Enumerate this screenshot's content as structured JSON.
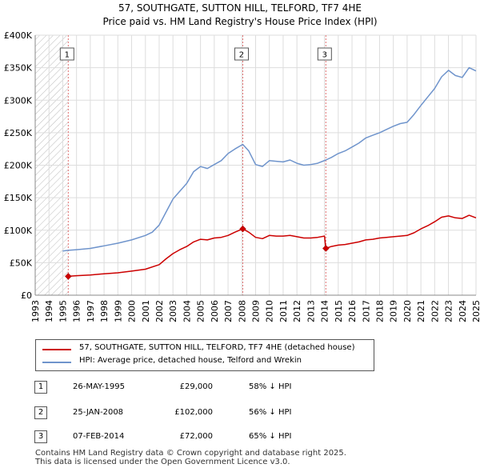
{
  "header": {
    "title": "57, SOUTHGATE, SUTTON HILL, TELFORD, TF7 4HE",
    "subtitle": "Price paid vs. HM Land Registry's House Price Index (HPI)"
  },
  "chart_data": {
    "type": "line",
    "x_axis": {
      "min": 1993,
      "max": 2025,
      "ticks": [
        1993,
        1994,
        1995,
        1996,
        1997,
        1998,
        1999,
        2000,
        2001,
        2002,
        2003,
        2004,
        2005,
        2006,
        2007,
        2008,
        2009,
        2010,
        2011,
        2012,
        2013,
        2014,
        2015,
        2016,
        2017,
        2018,
        2019,
        2020,
        2021,
        2022,
        2023,
        2024,
        2025
      ]
    },
    "y_axis": {
      "min": 0,
      "max": 400000,
      "ticks": [
        {
          "value": 0,
          "label": "£0"
        },
        {
          "value": 50000,
          "label": "£50K"
        },
        {
          "value": 100000,
          "label": "£100K"
        },
        {
          "value": 150000,
          "label": "£150K"
        },
        {
          "value": 200000,
          "label": "£200K"
        },
        {
          "value": 250000,
          "label": "£250K"
        },
        {
          "value": 300000,
          "label": "£300K"
        },
        {
          "value": 350000,
          "label": "£350K"
        },
        {
          "value": 400000,
          "label": "£400K"
        }
      ]
    },
    "grid": true,
    "hatched_before": 1995.4,
    "series": [
      {
        "name": "57, SOUTHGATE, SUTTON HILL, TELFORD, TF7 4HE (detached house)",
        "color": "#cc0000",
        "points": [
          [
            1995.4,
            29000
          ],
          [
            1996.0,
            30000
          ],
          [
            1997.0,
            31000
          ],
          [
            1998.0,
            33000
          ],
          [
            1999.0,
            34500
          ],
          [
            2000.0,
            37000
          ],
          [
            2001.0,
            40000
          ],
          [
            2002.0,
            47000
          ],
          [
            2002.5,
            56000
          ],
          [
            2003.0,
            64000
          ],
          [
            2003.5,
            70000
          ],
          [
            2004.0,
            75000
          ],
          [
            2004.5,
            82000
          ],
          [
            2005.0,
            86000
          ],
          [
            2005.5,
            85000
          ],
          [
            2006.0,
            88000
          ],
          [
            2006.5,
            89000
          ],
          [
            2007.0,
            92000
          ],
          [
            2007.5,
            97000
          ],
          [
            2008.07,
            102000
          ],
          [
            2008.5,
            97000
          ],
          [
            2009.0,
            89000
          ],
          [
            2009.5,
            87000
          ],
          [
            2010.0,
            92000
          ],
          [
            2010.5,
            91000
          ],
          [
            2011.0,
            91000
          ],
          [
            2011.5,
            92000
          ],
          [
            2012.0,
            90000
          ],
          [
            2012.5,
            88000
          ],
          [
            2013.0,
            88000
          ],
          [
            2013.5,
            89000
          ],
          [
            2014.0,
            91000
          ],
          [
            2014.1,
            72000
          ],
          [
            2014.5,
            75000
          ],
          [
            2015.0,
            77000
          ],
          [
            2015.5,
            78000
          ],
          [
            2016.0,
            80000
          ],
          [
            2016.5,
            82000
          ],
          [
            2017.0,
            85000
          ],
          [
            2017.5,
            86000
          ],
          [
            2018.0,
            88000
          ],
          [
            2018.5,
            89000
          ],
          [
            2019.0,
            90000
          ],
          [
            2019.5,
            91000
          ],
          [
            2020.0,
            92000
          ],
          [
            2020.5,
            96000
          ],
          [
            2021.0,
            102000
          ],
          [
            2021.5,
            107000
          ],
          [
            2022.0,
            113000
          ],
          [
            2022.5,
            120000
          ],
          [
            2023.0,
            122000
          ],
          [
            2023.5,
            119000
          ],
          [
            2024.0,
            118000
          ],
          [
            2024.5,
            123000
          ],
          [
            2025.0,
            119000
          ]
        ]
      },
      {
        "name": "HPI: Average price, detached house, Telford and Wrekin",
        "color": "#6f94cc",
        "points": [
          [
            1995.0,
            68000
          ],
          [
            1995.4,
            69000
          ],
          [
            1996.0,
            70000
          ],
          [
            1997.0,
            72000
          ],
          [
            1998.0,
            76000
          ],
          [
            1999.0,
            80000
          ],
          [
            2000.0,
            85000
          ],
          [
            2001.0,
            92000
          ],
          [
            2001.5,
            97000
          ],
          [
            2002.0,
            108000
          ],
          [
            2002.5,
            128000
          ],
          [
            2003.0,
            148000
          ],
          [
            2003.5,
            160000
          ],
          [
            2004.0,
            172000
          ],
          [
            2004.5,
            190000
          ],
          [
            2005.0,
            198000
          ],
          [
            2005.5,
            195000
          ],
          [
            2006.0,
            201000
          ],
          [
            2006.5,
            207000
          ],
          [
            2007.0,
            218000
          ],
          [
            2007.5,
            225000
          ],
          [
            2008.07,
            232000
          ],
          [
            2008.5,
            222000
          ],
          [
            2009.0,
            201000
          ],
          [
            2009.5,
            198000
          ],
          [
            2010.0,
            207000
          ],
          [
            2010.5,
            206000
          ],
          [
            2011.0,
            205000
          ],
          [
            2011.5,
            208000
          ],
          [
            2012.0,
            203000
          ],
          [
            2012.5,
            200000
          ],
          [
            2013.0,
            201000
          ],
          [
            2013.5,
            203000
          ],
          [
            2014.1,
            208000
          ],
          [
            2014.5,
            212000
          ],
          [
            2015.0,
            218000
          ],
          [
            2015.5,
            222000
          ],
          [
            2016.0,
            228000
          ],
          [
            2016.5,
            234000
          ],
          [
            2017.0,
            242000
          ],
          [
            2017.5,
            246000
          ],
          [
            2018.0,
            250000
          ],
          [
            2018.5,
            255000
          ],
          [
            2019.0,
            260000
          ],
          [
            2019.5,
            264000
          ],
          [
            2020.0,
            266000
          ],
          [
            2020.5,
            278000
          ],
          [
            2021.0,
            292000
          ],
          [
            2021.5,
            305000
          ],
          [
            2022.0,
            318000
          ],
          [
            2022.5,
            336000
          ],
          [
            2023.0,
            346000
          ],
          [
            2023.5,
            338000
          ],
          [
            2024.0,
            335000
          ],
          [
            2024.5,
            350000
          ],
          [
            2025.0,
            345000
          ]
        ]
      }
    ],
    "markers": [
      {
        "label": "1",
        "x": 1995.4,
        "y": 29000
      },
      {
        "label": "2",
        "x": 2008.07,
        "y": 102000
      },
      {
        "label": "3",
        "x": 2014.1,
        "y": 72000
      }
    ]
  },
  "legend": {
    "items": [
      {
        "label": "57, SOUTHGATE, SUTTON HILL, TELFORD, TF7 4HE (detached house)",
        "color": "#cc0000"
      },
      {
        "label": "HPI: Average price, detached house, Telford and Wrekin",
        "color": "#6f94cc"
      }
    ]
  },
  "sales": [
    {
      "num": "1",
      "date": "26-MAY-1995",
      "price": "£29,000",
      "hpi": "58% ↓ HPI"
    },
    {
      "num": "2",
      "date": "25-JAN-2008",
      "price": "£102,000",
      "hpi": "56% ↓ HPI"
    },
    {
      "num": "3",
      "date": "07-FEB-2014",
      "price": "£72,000",
      "hpi": "65% ↓ HPI"
    }
  ],
  "footer": {
    "line1": "Contains HM Land Registry data © Crown copyright and database right 2025.",
    "line2": "This data is licensed under the Open Government Licence v3.0."
  }
}
